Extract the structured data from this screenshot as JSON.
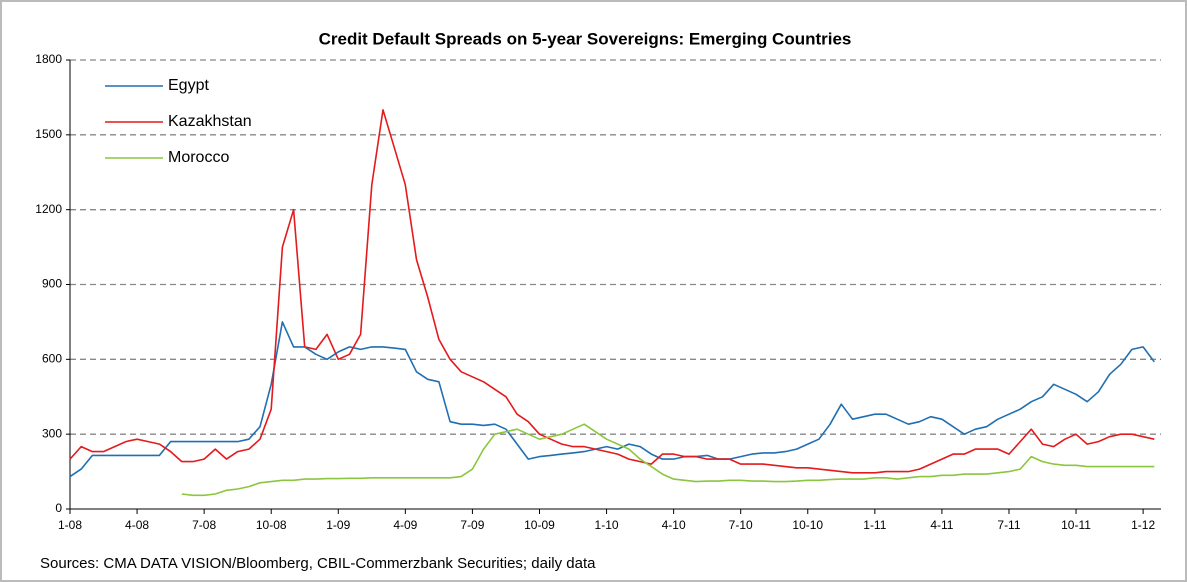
{
  "chart_data": {
    "type": "line",
    "title": "Credit Default Spreads on 5-year Sovereigns: Emerging Countries",
    "note": "Sources: CMA DATA VISION/Bloomberg, CBIL-Commerzbank Securities; daily data",
    "x": [
      0,
      0.5,
      1,
      1.5,
      2,
      2.5,
      3,
      3.5,
      4,
      4.5,
      5,
      5.5,
      6,
      6.5,
      7,
      7.5,
      8,
      8.5,
      9,
      9.5,
      10,
      10.5,
      11,
      11.5,
      12,
      12.5,
      13,
      13.5,
      14,
      14.5,
      15,
      15.5,
      16,
      16.5,
      17,
      17.5,
      18,
      18.5,
      19,
      19.5,
      20,
      20.5,
      21,
      21.5,
      22,
      22.5,
      23,
      23.5,
      24,
      24.5,
      25,
      25.5,
      26,
      26.5,
      27,
      27.5,
      28,
      28.5,
      29,
      29.5,
      30,
      30.5,
      31,
      31.5,
      32,
      32.5,
      33,
      33.5,
      34,
      34.5,
      35,
      35.5,
      36,
      36.5,
      37,
      37.5,
      38,
      38.5,
      39,
      39.5,
      40,
      40.5,
      41,
      41.5,
      42,
      42.5,
      43,
      43.5,
      44,
      44.5,
      45,
      45.5,
      46,
      46.5,
      47,
      47.5,
      48,
      48.5
    ],
    "series": [
      {
        "name": "Egypt",
        "color": "#1f6fb2",
        "values": [
          130,
          160,
          215,
          215,
          215,
          215,
          215,
          215,
          215,
          270,
          270,
          270,
          270,
          270,
          270,
          270,
          280,
          330,
          500,
          750,
          650,
          650,
          620,
          600,
          630,
          650,
          640,
          650,
          650,
          645,
          640,
          550,
          520,
          510,
          350,
          340,
          340,
          335,
          340,
          320,
          260,
          200,
          210,
          215,
          220,
          225,
          230,
          240,
          250,
          240,
          260,
          250,
          220,
          200,
          200,
          210,
          210,
          215,
          200,
          200,
          210,
          220,
          225,
          225,
          230,
          240,
          260,
          280,
          340,
          420,
          360,
          370,
          380,
          380,
          360,
          340,
          350,
          370,
          360,
          330,
          300,
          320,
          330,
          360,
          380,
          400,
          430,
          450,
          500,
          480,
          460,
          430,
          470,
          540,
          580,
          640,
          650,
          590
        ]
      },
      {
        "name": "Kazakhstan",
        "color": "#e41a1c",
        "values": [
          200,
          250,
          230,
          230,
          250,
          270,
          280,
          270,
          260,
          230,
          190,
          190,
          200,
          240,
          200,
          230,
          240,
          280,
          400,
          1050,
          1200,
          650,
          640,
          700,
          600,
          620,
          700,
          1300,
          1600,
          1450,
          1300,
          1000,
          850,
          680,
          600,
          550,
          530,
          510,
          480,
          450,
          380,
          350,
          300,
          280,
          260,
          250,
          250,
          240,
          230,
          220,
          200,
          190,
          180,
          220,
          220,
          210,
          210,
          200,
          200,
          200,
          180,
          180,
          180,
          175,
          170,
          165,
          165,
          160,
          155,
          150,
          145,
          145,
          145,
          150,
          150,
          150,
          160,
          180,
          200,
          220,
          220,
          240,
          240,
          240,
          220,
          270,
          320,
          260,
          250,
          280,
          300,
          260,
          270,
          290,
          300,
          300,
          290,
          280
        ]
      },
      {
        "name": "Morocco",
        "color": "#8cc63f",
        "values": [
          null,
          null,
          null,
          null,
          null,
          null,
          null,
          null,
          null,
          null,
          60,
          55,
          55,
          60,
          75,
          80,
          90,
          105,
          110,
          115,
          115,
          120,
          120,
          122,
          122,
          123,
          123,
          125,
          125,
          125,
          125,
          125,
          125,
          125,
          125,
          130,
          160,
          240,
          300,
          310,
          320,
          300,
          280,
          290,
          300,
          320,
          340,
          310,
          280,
          260,
          240,
          200,
          170,
          140,
          120,
          115,
          110,
          112,
          112,
          115,
          115,
          112,
          112,
          110,
          110,
          112,
          115,
          115,
          118,
          120,
          120,
          120,
          125,
          125,
          120,
          125,
          130,
          130,
          135,
          135,
          140,
          140,
          140,
          145,
          150,
          160,
          210,
          190,
          180,
          175,
          175,
          170,
          170,
          170,
          170,
          170,
          170,
          170
        ]
      }
    ],
    "xlim": [
      0,
      48.8
    ],
    "xticks": [
      {
        "value": 0,
        "label": "1-08"
      },
      {
        "value": 3,
        "label": "4-08"
      },
      {
        "value": 6,
        "label": "7-08"
      },
      {
        "value": 9,
        "label": "10-08"
      },
      {
        "value": 12,
        "label": "1-09"
      },
      {
        "value": 15,
        "label": "4-09"
      },
      {
        "value": 18,
        "label": "7-09"
      },
      {
        "value": 21,
        "label": "10-09"
      },
      {
        "value": 24,
        "label": "1-10"
      },
      {
        "value": 27,
        "label": "4-10"
      },
      {
        "value": 30,
        "label": "7-10"
      },
      {
        "value": 33,
        "label": "10-10"
      },
      {
        "value": 36,
        "label": "1-11"
      },
      {
        "value": 39,
        "label": "4-11"
      },
      {
        "value": 42,
        "label": "7-11"
      },
      {
        "value": 45,
        "label": "10-11"
      },
      {
        "value": 48,
        "label": "1-12"
      }
    ],
    "ylim": [
      0,
      1800
    ],
    "yticks": [
      0,
      300,
      600,
      900,
      1200,
      1500,
      1800
    ],
    "grid": true,
    "legend": "top-left"
  }
}
